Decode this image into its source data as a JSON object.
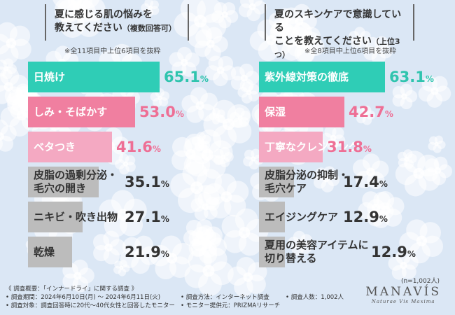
{
  "colors": {
    "teal": "#2fcdb6",
    "pink": "#f07fa0",
    "light_pink": "#f4a9c2",
    "gray": "#bcbcbc",
    "teal_text": "#2fc4ae",
    "pink_text": "#ee6f95"
  },
  "chart_data": [
    {
      "type": "bar",
      "title": "夏に感じる肌の悩みを",
      "title2": "教えてください",
      "title_suffix": "（複数回答可）",
      "note": "※全11項目中上位6項目を抜粋",
      "categories": [
        "日焼け",
        "しみ・そばかす",
        "ベタつき",
        "皮脂の過剰分泌・\n毛穴の開き",
        "ニキビ・吹き出物",
        "乾燥"
      ],
      "values": [
        65.1,
        53.0,
        41.6,
        35.1,
        27.1,
        21.9
      ],
      "value_labels": [
        "65.1",
        "53.0",
        "41.6",
        "35.1",
        "27.1",
        "21.9"
      ],
      "unit": "%",
      "max": 65.1
    },
    {
      "type": "bar",
      "title": "夏のスキンケアで意識している",
      "title2": "ことを教えてください",
      "title_suffix": "（上位3つ）",
      "note": "※全8項目中上位6項目を抜粋",
      "categories": [
        "紫外線対策の徹底",
        "保湿",
        "丁寧なクレンジング",
        "皮脂分泌の抑制・\n毛穴ケア",
        "エイジングケア",
        "夏用の美容アイテムに\n切り替える"
      ],
      "values": [
        63.1,
        42.7,
        31.8,
        17.4,
        12.9,
        12.9
      ],
      "value_labels": [
        "63.1",
        "42.7",
        "31.8",
        "17.4",
        "12.9",
        "12.9"
      ],
      "unit": "%",
      "max": 63.1
    }
  ],
  "n_note": "(n=1,002人)",
  "footer": {
    "survey_overview": "《 調査概要：「インナードライ」に関する調査 》",
    "period": "• 調査期間：2024年6月10日(月) ～ 2024年6月11日(火)",
    "method": "• 調査方法：インターネット調査",
    "count": "• 調査人数：1,002人",
    "target": "• 調査対象：調査回答時に20代～40代女性と回答したモニター",
    "provider": "• モニター提供元：PRIZMAリサーチ"
  },
  "brand": {
    "name": "MANAVÍS",
    "tagline": "Naturae Vis Maxima"
  }
}
